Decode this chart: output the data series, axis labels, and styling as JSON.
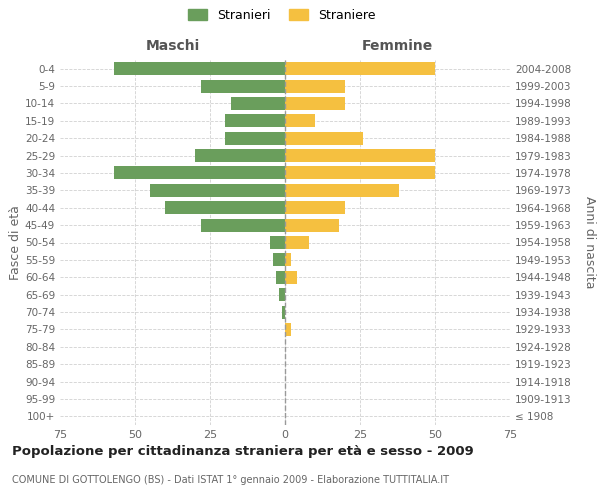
{
  "age_groups": [
    "100+",
    "95-99",
    "90-94",
    "85-89",
    "80-84",
    "75-79",
    "70-74",
    "65-69",
    "60-64",
    "55-59",
    "50-54",
    "45-49",
    "40-44",
    "35-39",
    "30-34",
    "25-29",
    "20-24",
    "15-19",
    "10-14",
    "5-9",
    "0-4"
  ],
  "birth_years": [
    "≤ 1908",
    "1909-1913",
    "1914-1918",
    "1919-1923",
    "1924-1928",
    "1929-1933",
    "1934-1938",
    "1939-1943",
    "1944-1948",
    "1949-1953",
    "1954-1958",
    "1959-1963",
    "1964-1968",
    "1969-1973",
    "1974-1978",
    "1979-1983",
    "1984-1988",
    "1989-1993",
    "1994-1998",
    "1999-2003",
    "2004-2008"
  ],
  "males": [
    0,
    0,
    0,
    0,
    0,
    0,
    1,
    2,
    3,
    4,
    5,
    28,
    40,
    45,
    57,
    30,
    20,
    20,
    18,
    28,
    57
  ],
  "females": [
    0,
    0,
    0,
    0,
    0,
    2,
    0,
    0,
    4,
    2,
    8,
    18,
    20,
    38,
    50,
    50,
    26,
    10,
    20,
    20,
    50
  ],
  "male_color": "#6a9e5c",
  "female_color": "#f5c040",
  "title": "Popolazione per cittadinanza straniera per età e sesso - 2009",
  "subtitle": "COMUNE DI GOTTOLENGO (BS) - Dati ISTAT 1° gennaio 2009 - Elaborazione TUTTITALIA.IT",
  "ylabel_left": "Fasce di età",
  "ylabel_right": "Anni di nascita",
  "xlabel_left": "Maschi",
  "xlabel_right": "Femmine",
  "legend_male": "Stranieri",
  "legend_female": "Straniere",
  "xlim": 75,
  "background_color": "#ffffff",
  "grid_color": "#cccccc",
  "title_fontsize": 9.5,
  "subtitle_fontsize": 7.0
}
